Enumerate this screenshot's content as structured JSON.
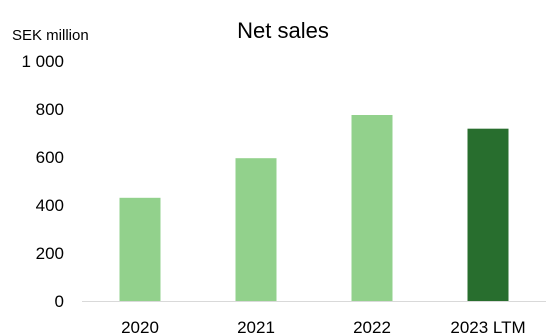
{
  "chart_data": {
    "type": "bar",
    "title": "Net sales",
    "ylabel": "SEK million",
    "xlabel": "",
    "categories": [
      "2020",
      "2021",
      "2022",
      "2023 LTM"
    ],
    "series": [
      {
        "values": [
          430,
          595,
          775,
          718
        ]
      }
    ],
    "colors": [
      "#92d18c",
      "#92d18c",
      "#92d18c",
      "#286e2e"
    ],
    "ylim": [
      0,
      1000
    ],
    "yticks": [
      "0",
      "200",
      "400",
      "600",
      "800",
      "1 000"
    ],
    "grid": false,
    "legend": "none"
  }
}
